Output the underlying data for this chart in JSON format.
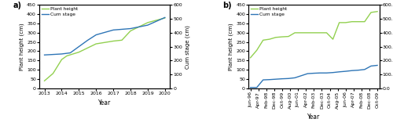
{
  "panel_a": {
    "plant_height_x": [
      2013,
      2013.5,
      2014,
      2014.3,
      2015,
      2016,
      2017,
      2017.5,
      2018,
      2019,
      2020
    ],
    "plant_height_y": [
      40,
      80,
      155,
      175,
      195,
      240,
      255,
      260,
      310,
      355,
      380
    ],
    "cum_stage_x": [
      2013,
      2013.3,
      2014,
      2014.5,
      2015,
      2015.5,
      2016,
      2017,
      2017.5,
      2018,
      2019,
      2020
    ],
    "cum_stage_y": [
      240,
      242,
      247,
      255,
      300,
      345,
      385,
      420,
      425,
      430,
      455,
      510
    ],
    "xlabel": "Year",
    "ylabel_left": "Plant height (cm)",
    "ylabel_right": "Cum stage (cm)",
    "ylim_left": [
      0,
      450
    ],
    "ylim_right": [
      0,
      600
    ],
    "yticks_left": [
      0,
      50,
      100,
      150,
      200,
      250,
      300,
      350,
      400,
      450
    ],
    "yticks_right": [
      0,
      100,
      200,
      300,
      400,
      500,
      600
    ],
    "xticks": [
      2013,
      2014,
      2015,
      2016,
      2017,
      2018,
      2019,
      2020
    ],
    "label": "a)",
    "legend_labels": [
      "Plant height",
      "Cum stage"
    ],
    "plant_color": "#92d050",
    "cum_color": "#2e75b6"
  },
  "panel_b": {
    "plant_height_x": [
      0,
      1,
      2,
      3,
      4,
      5,
      6,
      7,
      8,
      9,
      10,
      11,
      12,
      13,
      14,
      15,
      16,
      17,
      18,
      19,
      20
    ],
    "plant_height_y": [
      165,
      205,
      260,
      265,
      275,
      278,
      280,
      300,
      300,
      300,
      300,
      300,
      300,
      265,
      355,
      355,
      360,
      360,
      360,
      410,
      415
    ],
    "cum_stage_x": [
      0,
      1,
      2,
      3,
      4,
      5,
      6,
      7,
      8,
      9,
      10,
      11,
      12,
      13,
      14,
      15,
      16,
      17,
      18,
      19,
      20
    ],
    "cum_stage_y": [
      5,
      5,
      60,
      62,
      65,
      68,
      70,
      75,
      90,
      105,
      108,
      110,
      110,
      113,
      118,
      122,
      127,
      130,
      135,
      160,
      165
    ],
    "xtick_labels": [
      "Jun-96",
      "Apr-97",
      "Feb-98",
      "Dec-98",
      "Oct-99",
      "Aug-00",
      "Jun-01",
      "Apr-02",
      "Feb-03",
      "Dec-03",
      "Oct-04",
      "Aug-05",
      "Jun-06",
      "Apr-07",
      "Feb-08",
      "Dec-08",
      "Oct-09"
    ],
    "xlabel": "Year",
    "ylabel_left": "Plant height (cm)",
    "ylabel_right": "Cum stage (cm)",
    "ylim_left": [
      0,
      450
    ],
    "ylim_right": [
      0,
      600
    ],
    "yticks_left": [
      0,
      50,
      100,
      150,
      200,
      250,
      300,
      350,
      400,
      450
    ],
    "yticks_right": [
      0.0,
      100.0,
      200.0,
      300.0,
      400.0,
      500.0,
      600.0
    ],
    "label": "b)",
    "legend_labels": [
      "Plant height",
      "Cum stage"
    ],
    "plant_color": "#92d050",
    "cum_color": "#2e75b6"
  }
}
